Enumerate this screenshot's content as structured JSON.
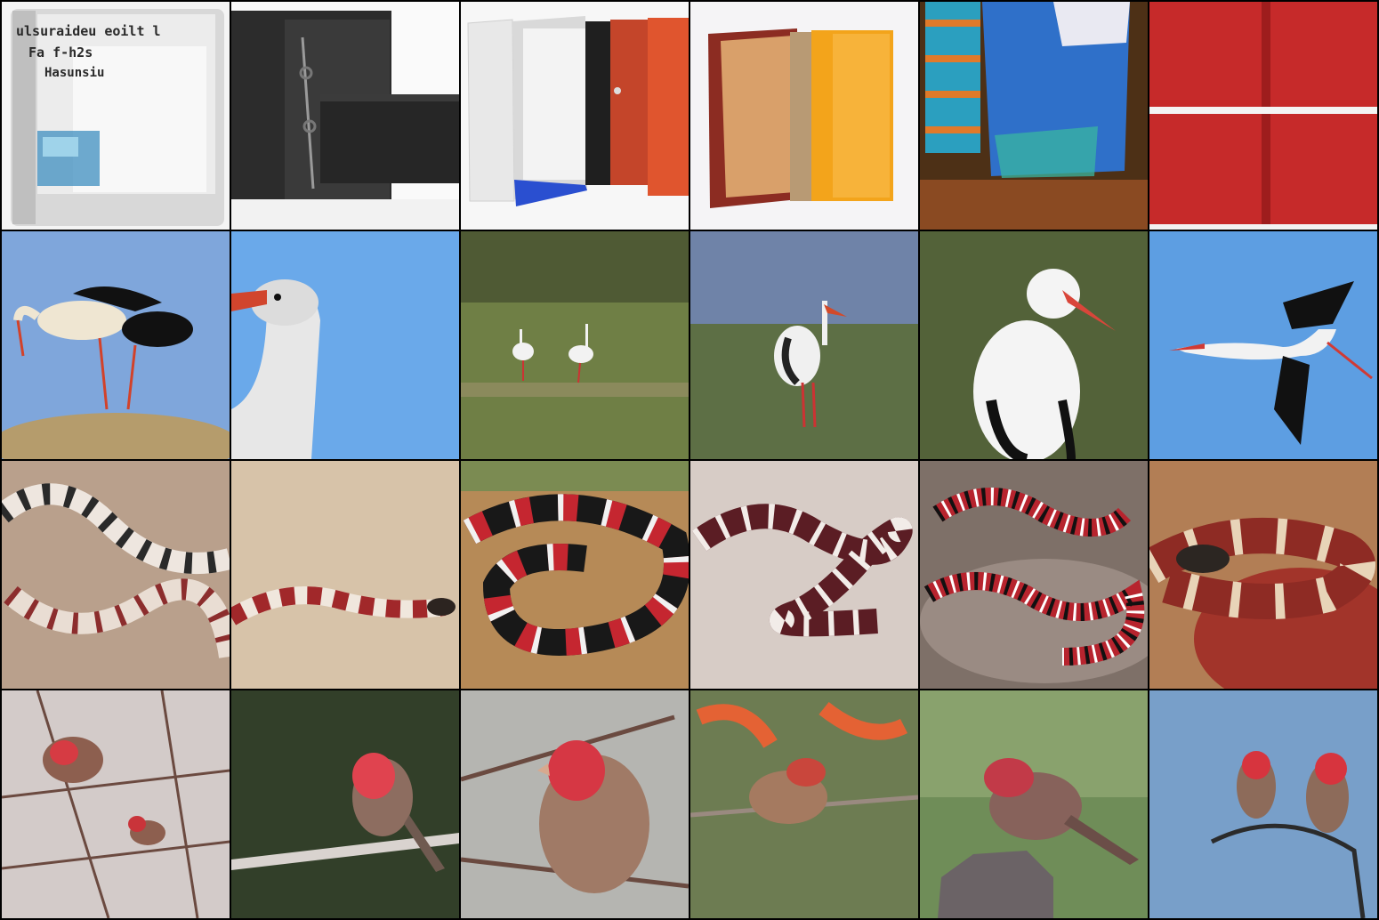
{
  "grid": {
    "columns": 6,
    "rows": 4,
    "row_subjects": [
      "ring binder",
      "white stork",
      "milk snake",
      "house finch"
    ]
  },
  "tiles": {
    "binder_text": [
      "ulsuraideu eoilt l",
      "Fa f-h2s",
      "Hasunsiu"
    ]
  },
  "colors": {
    "background": "#000000",
    "sky": "#6aa9ea",
    "grass": "#6f7f45",
    "binder_red": "#c62a2a",
    "binder_blue": "#2f70c9",
    "snake_red": "#a3242a",
    "finch_red": "#d33f4f"
  }
}
